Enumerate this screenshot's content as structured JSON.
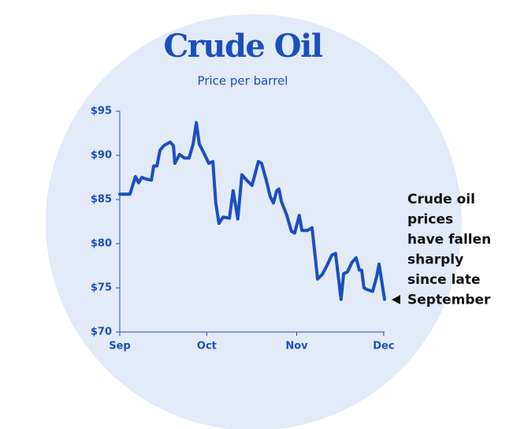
{
  "chart_data": {
    "type": "line",
    "title": "Crude Oil",
    "subtitle": "Price per barrel",
    "annotation": [
      "Crude oil",
      "prices",
      "have fallen",
      "sharply",
      "since late",
      "September"
    ],
    "x": [
      0,
      3.5,
      5.4,
      6.5,
      7.6,
      9.2,
      10.9,
      11.7,
      12.8,
      13.9,
      15.2,
      17.4,
      18.5,
      19.0,
      20.6,
      22.3,
      23.9,
      25.3,
      26.4,
      27.4,
      29.1,
      30.7,
      32.1,
      33.1,
      34.2,
      35.6,
      37.8,
      39.1,
      40.7,
      42.1,
      44.0,
      45.6,
      47.8,
      48.9,
      50.5,
      51.9,
      53.0,
      54.1,
      54.9,
      55.7,
      57.6,
      59.2,
      60.3,
      61.9,
      62.8,
      64.7,
      66.3,
      67.4,
      68.2,
      69.8,
      71.4,
      73.1,
      74.4,
      75.5,
      76.3,
      77.2,
      78.5,
      80.1,
      81.5,
      82.6,
      83.4,
      84.2,
      85.3,
      87.2,
      88.6,
      89.4,
      91.3
    ],
    "series": [
      {
        "name": "Crude oil",
        "color": "#1a4fc0",
        "values": [
          85.6,
          85.6,
          87.6,
          86.9,
          87.5,
          87.3,
          87.2,
          88.8,
          88.8,
          90.6,
          91.1,
          91.5,
          91.1,
          89.1,
          90.1,
          89.7,
          89.7,
          91.3,
          93.7,
          91.3,
          90.2,
          89.1,
          89.3,
          84.6,
          82.3,
          83.0,
          82.9,
          86.0,
          82.8,
          87.8,
          87.1,
          86.6,
          89.3,
          89.1,
          87.2,
          85.3,
          84.6,
          86.0,
          86.2,
          84.8,
          83.2,
          81.4,
          81.2,
          83.2,
          81.5,
          81.5,
          81.8,
          78.5,
          76.0,
          76.5,
          77.5,
          78.7,
          78.9,
          75.9,
          73.7,
          76.6,
          76.8,
          77.9,
          78.4,
          77.0,
          77.0,
          75.0,
          74.8,
          74.6,
          76.3,
          77.7,
          73.7
        ]
      }
    ],
    "xlim": [
      0,
      91.3
    ],
    "xticks": [
      {
        "value": 0,
        "label": "Sep"
      },
      {
        "value": 30,
        "label": "Oct"
      },
      {
        "value": 61,
        "label": "Nov"
      },
      {
        "value": 91,
        "label": "Dec"
      }
    ],
    "ylim": [
      70,
      95
    ],
    "yticks": [
      {
        "value": 70,
        "label": "$70"
      },
      {
        "value": 75,
        "label": "$75"
      },
      {
        "value": 80,
        "label": "$80"
      },
      {
        "value": 85,
        "label": "$85"
      },
      {
        "value": 90,
        "label": "$90"
      },
      {
        "value": 95,
        "label": "$95"
      }
    ],
    "grid": false
  }
}
